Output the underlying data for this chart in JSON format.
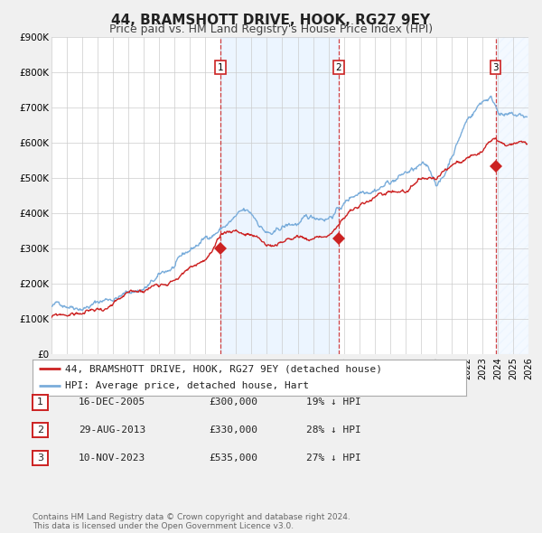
{
  "title": "44, BRAMSHOTT DRIVE, HOOK, RG27 9EY",
  "subtitle": "Price paid vs. HM Land Registry's House Price Index (HPI)",
  "xlim": [
    1995,
    2026
  ],
  "ylim": [
    0,
    900000
  ],
  "yticks": [
    0,
    100000,
    200000,
    300000,
    400000,
    500000,
    600000,
    700000,
    800000,
    900000
  ],
  "ytick_labels": [
    "£0",
    "£100K",
    "£200K",
    "£300K",
    "£400K",
    "£500K",
    "£600K",
    "£700K",
    "£800K",
    "£900K"
  ],
  "xticks": [
    1995,
    1996,
    1997,
    1998,
    1999,
    2000,
    2001,
    2002,
    2003,
    2004,
    2005,
    2006,
    2007,
    2008,
    2009,
    2010,
    2011,
    2012,
    2013,
    2014,
    2015,
    2016,
    2017,
    2018,
    2019,
    2020,
    2021,
    2022,
    2023,
    2024,
    2025,
    2026
  ],
  "background_color": "#f0f0f0",
  "plot_bg_color": "#ffffff",
  "grid_color": "#cccccc",
  "hpi_color": "#7aaddb",
  "price_color": "#cc2222",
  "sale_dot_color": "#cc2222",
  "sale_marker_size": 7,
  "transactions": [
    {
      "label": "1",
      "date": 2005.96,
      "price": 300000,
      "x_label": 2006.0
    },
    {
      "label": "2",
      "date": 2013.66,
      "price": 330000,
      "x_label": 2013.66
    },
    {
      "label": "3",
      "date": 2023.86,
      "price": 535000,
      "x_label": 2023.86
    }
  ],
  "shade_color": "#ddeeff",
  "shade_alpha": 0.55,
  "legend_entries": [
    {
      "label": "44, BRAMSHOTT DRIVE, HOOK, RG27 9EY (detached house)",
      "color": "#cc2222",
      "lw": 2
    },
    {
      "label": "HPI: Average price, detached house, Hart",
      "color": "#7aaddb",
      "lw": 2
    }
  ],
  "table_rows": [
    {
      "num": "1",
      "date": "16-DEC-2005",
      "price": "£300,000",
      "pct": "19% ↓ HPI"
    },
    {
      "num": "2",
      "date": "29-AUG-2013",
      "price": "£330,000",
      "pct": "28% ↓ HPI"
    },
    {
      "num": "3",
      "date": "10-NOV-2023",
      "price": "£535,000",
      "pct": "27% ↓ HPI"
    }
  ],
  "footer": "Contains HM Land Registry data © Crown copyright and database right 2024.\nThis data is licensed under the Open Government Licence v3.0.",
  "title_fontsize": 11,
  "subtitle_fontsize": 9,
  "axis_fontsize": 7.5,
  "legend_fontsize": 8,
  "table_fontsize": 8,
  "footer_fontsize": 6.5
}
